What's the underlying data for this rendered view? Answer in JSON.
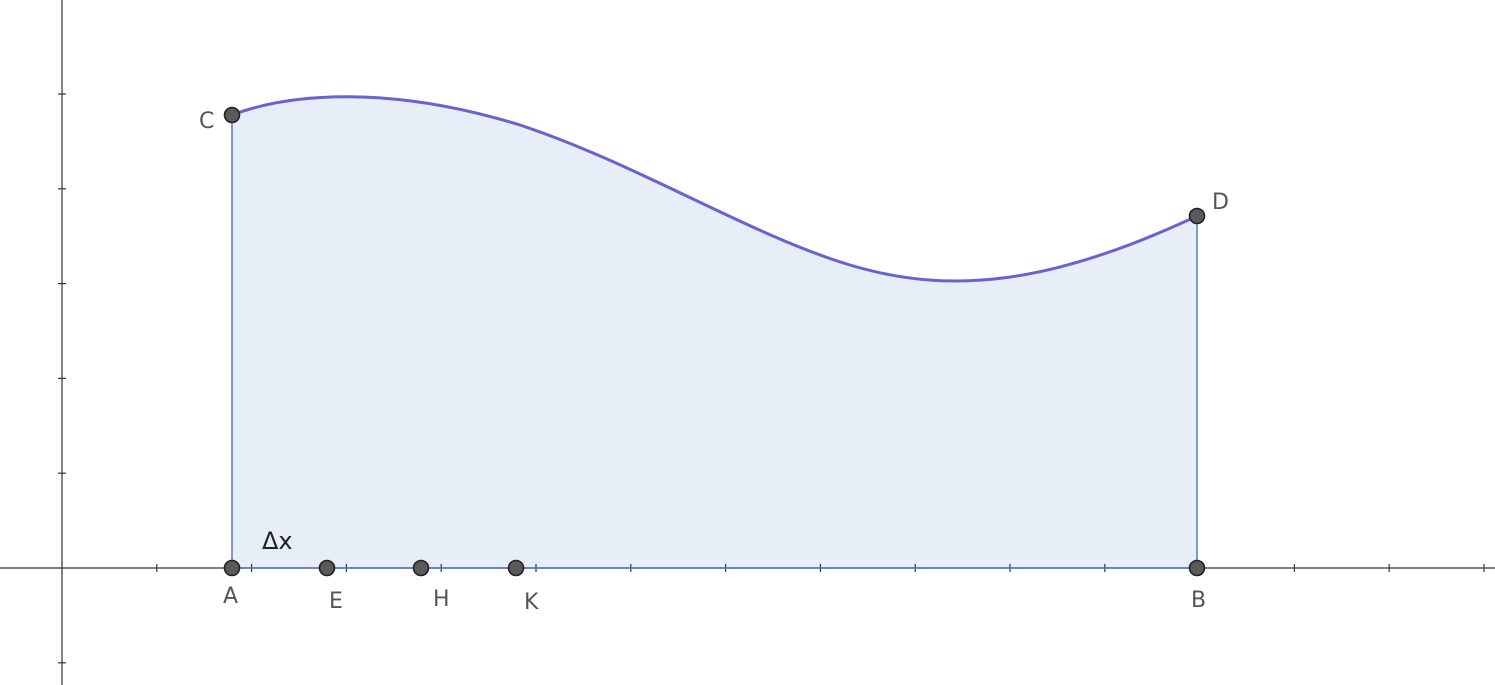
{
  "diagram": {
    "annotation": "Δx",
    "points": [
      {
        "id": "A",
        "label": "A"
      },
      {
        "id": "E",
        "label": "E"
      },
      {
        "id": "H",
        "label": "H"
      },
      {
        "id": "K",
        "label": "K"
      },
      {
        "id": "B",
        "label": "B"
      },
      {
        "id": "C",
        "label": "C"
      },
      {
        "id": "D",
        "label": "D"
      }
    ],
    "colors": {
      "curve": "#6a62cf",
      "region_fill": "#e8eef8",
      "region_edge": "#4a70c8",
      "point_fill": "#5a5a5a",
      "axis": "#333333"
    }
  }
}
